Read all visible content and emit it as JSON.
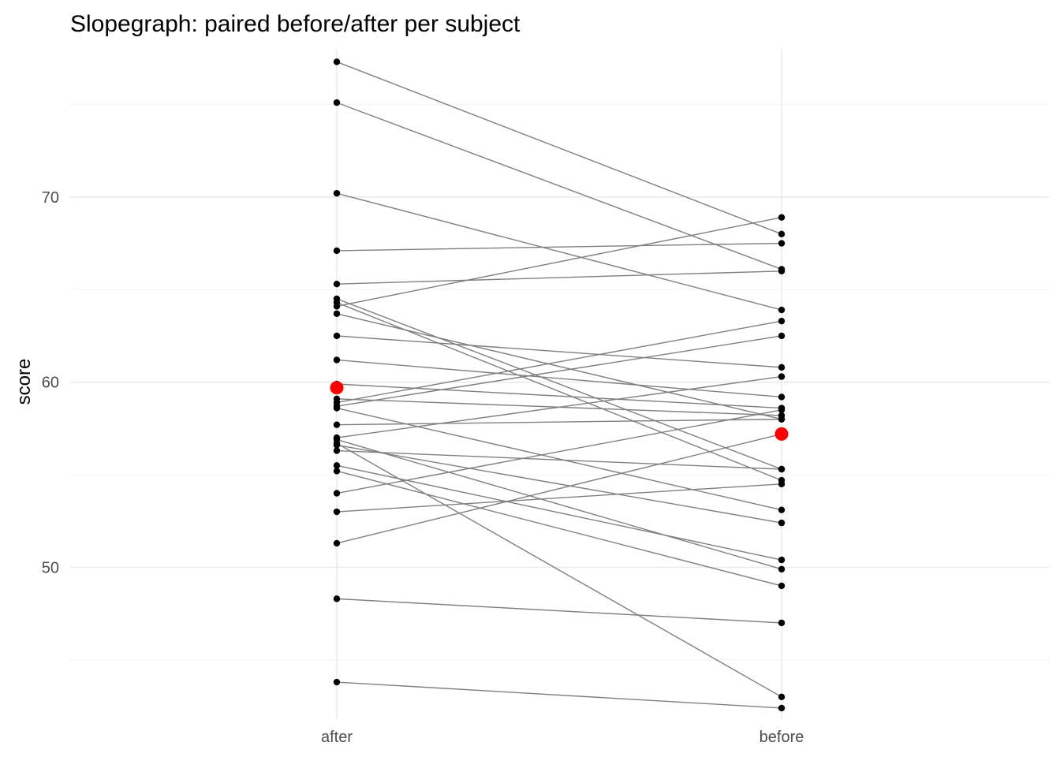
{
  "chart_data": {
    "type": "line",
    "title": "Slopegraph: paired before/after per subject",
    "xlabel": "",
    "ylabel": "score",
    "categories": [
      "after",
      "before"
    ],
    "ylim": [
      41.8,
      78.0
    ],
    "yticks": [
      50,
      60,
      70
    ],
    "grid": true,
    "legend": "none",
    "colors": {
      "line": "#7f7f7f",
      "point": "#000000",
      "mean": "#ff0000",
      "grid_major": "#ebebeb",
      "grid_minor": "#f4f4f4"
    },
    "subjects": [
      {
        "after": 77.3,
        "before": 68.0
      },
      {
        "after": 75.1,
        "before": 66.1
      },
      {
        "after": 70.2,
        "before": 63.9
      },
      {
        "after": 67.1,
        "before": 67.5
      },
      {
        "after": 65.3,
        "before": 66.0
      },
      {
        "after": 64.5,
        "before": 55.3
      },
      {
        "after": 64.3,
        "before": 54.7
      },
      {
        "after": 64.1,
        "before": 68.9
      },
      {
        "after": 63.7,
        "before": 58.0
      },
      {
        "after": 62.5,
        "before": 60.8
      },
      {
        "after": 61.2,
        "before": 59.2
      },
      {
        "after": 59.9,
        "before": 58.6
      },
      {
        "after": 59.1,
        "before": 58.2
      },
      {
        "after": 58.9,
        "before": 63.3
      },
      {
        "after": 58.7,
        "before": 62.5
      },
      {
        "after": 58.6,
        "before": 53.1
      },
      {
        "after": 57.7,
        "before": 58.0
      },
      {
        "after": 57.0,
        "before": 60.3
      },
      {
        "after": 56.9,
        "before": 49.9
      },
      {
        "after": 56.7,
        "before": 43.0
      },
      {
        "after": 56.6,
        "before": 52.4
      },
      {
        "after": 56.3,
        "before": 55.3
      },
      {
        "after": 55.5,
        "before": 50.4
      },
      {
        "after": 55.2,
        "before": 49.0
      },
      {
        "after": 54.0,
        "before": 58.5
      },
      {
        "after": 53.0,
        "before": 54.5
      },
      {
        "after": 51.3,
        "before": 57.2
      },
      {
        "after": 48.3,
        "before": 47.0
      },
      {
        "after": 43.8,
        "before": 42.4
      }
    ],
    "means": {
      "after": 59.7,
      "before": 57.2
    }
  }
}
